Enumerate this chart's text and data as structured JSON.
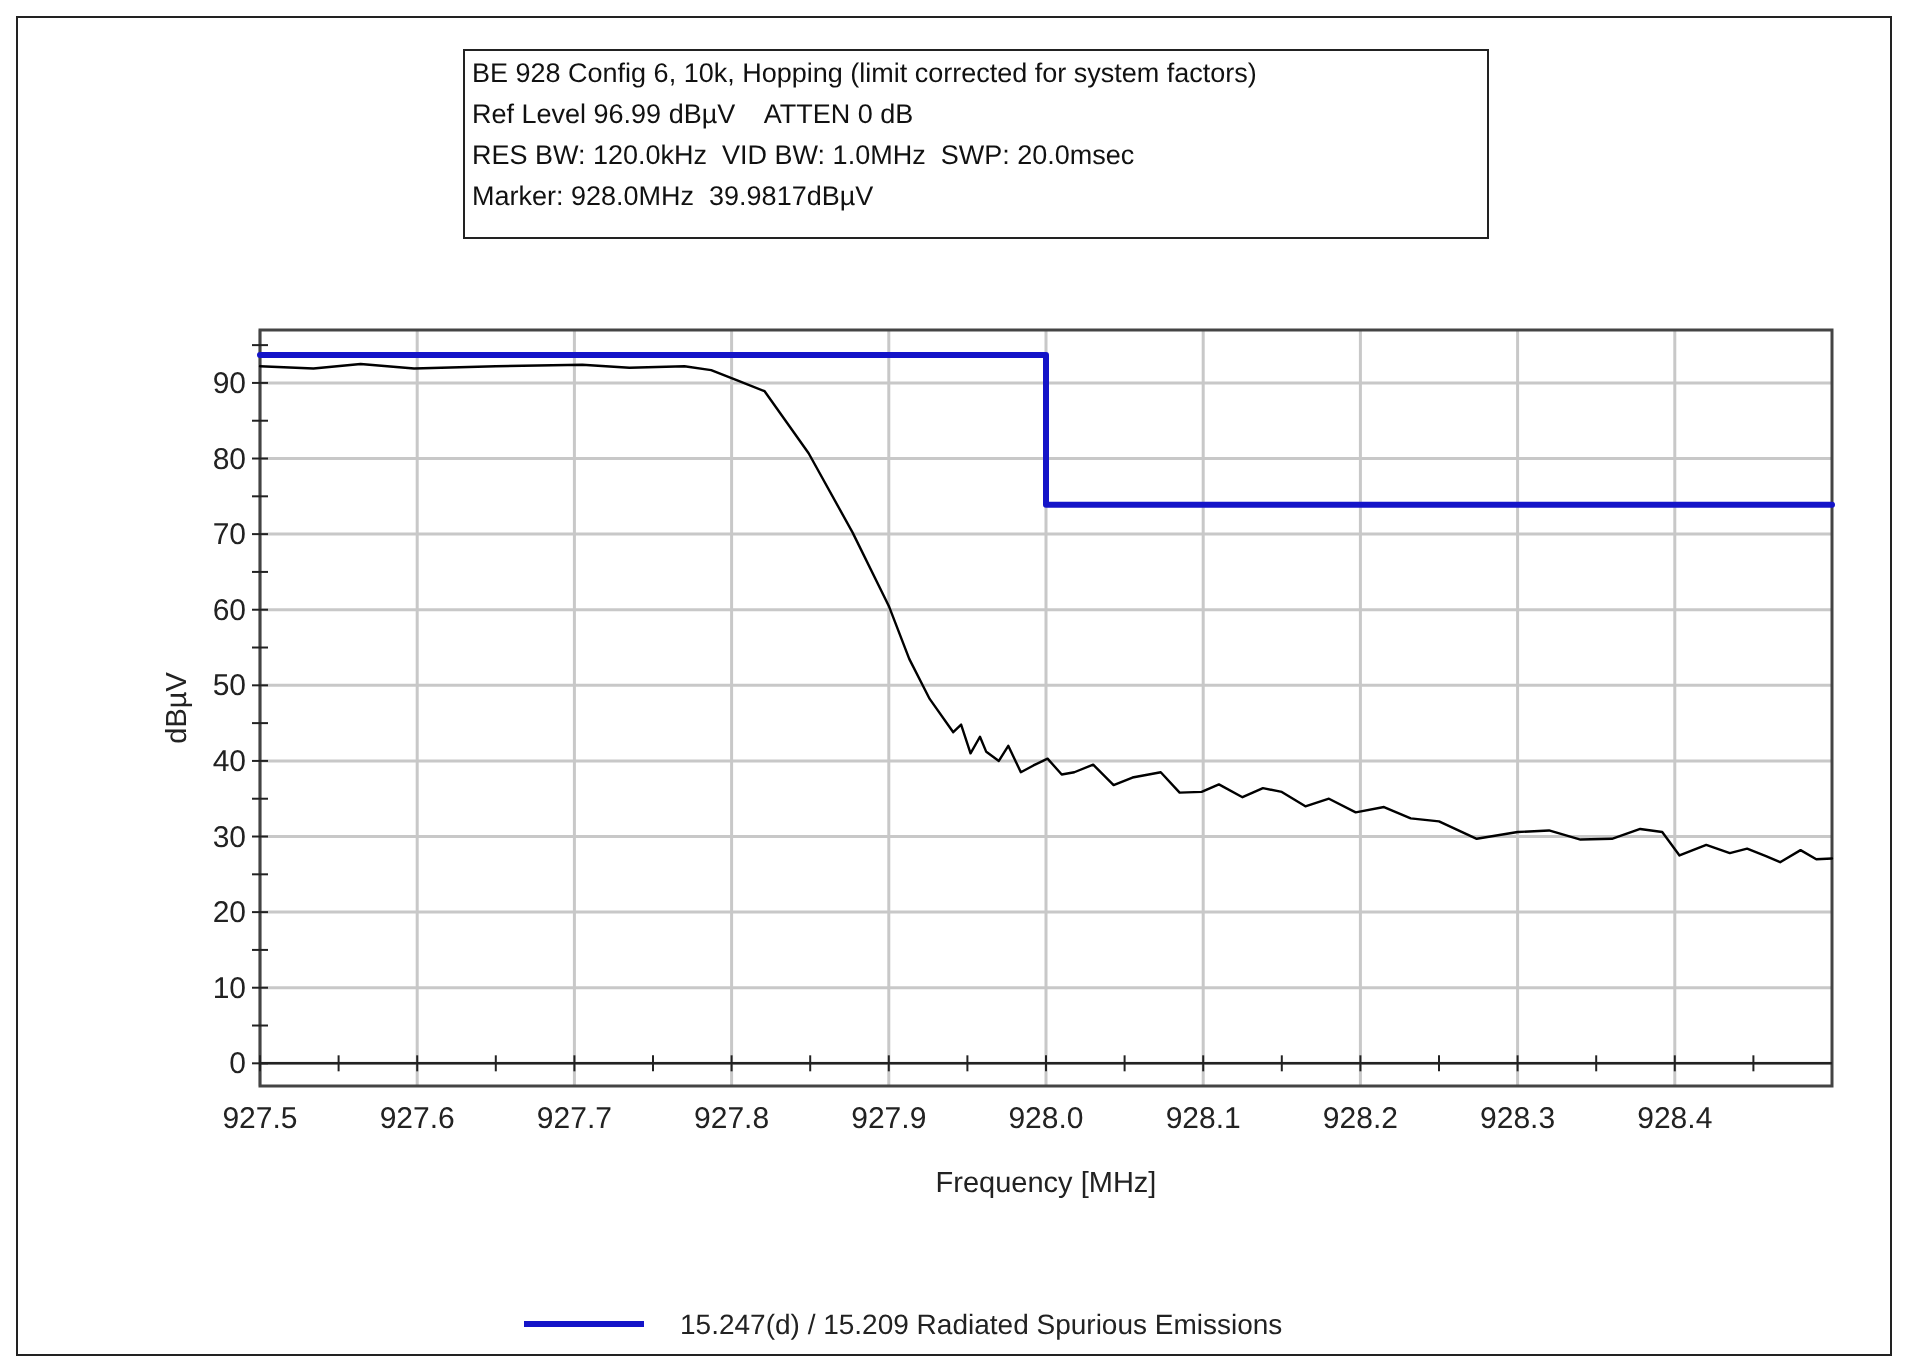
{
  "chart_data": {
    "type": "line",
    "title": "BE 928 Config 6, 10k, Hopping (limit corrected for system factors)",
    "annotations": [
      "Ref Level 96.99 dBµV    ATTEN 0 dB",
      "RES BW: 120.0kHz  VID BW: 1.0MHz  SWP: 20.0msec",
      "Marker: 928.0MHz  39.9817dBµV"
    ],
    "xlabel": "Frequency [MHz]",
    "ylabel": "dBµV",
    "xlim": [
      927.5,
      928.5
    ],
    "ylim": [
      -3,
      97
    ],
    "xticks": [
      927.5,
      {
        "value": 927.55,
        "label": null
      },
      927.6,
      {
        "value": 927.65,
        "label": null
      },
      927.7,
      {
        "value": 927.75,
        "label": null
      },
      927.8,
      {
        "value": 927.85,
        "label": null
      },
      927.9,
      {
        "value": 927.95,
        "label": null
      },
      {
        "value": 928.0,
        "label": "928.0"
      },
      {
        "value": 928.05,
        "label": null
      },
      928.1,
      {
        "value": 928.15,
        "label": null
      },
      928.2,
      {
        "value": 928.25,
        "label": null
      },
      928.3,
      {
        "value": 928.35,
        "label": null
      },
      928.4,
      {
        "value": 928.45,
        "label": null
      }
    ],
    "yticks": [
      0,
      {
        "value": 5,
        "label": null
      },
      10,
      {
        "value": 15,
        "label": null
      },
      20,
      {
        "value": 25,
        "label": null
      },
      30,
      {
        "value": 35,
        "label": null
      },
      40,
      {
        "value": 45,
        "label": null
      },
      50,
      {
        "value": 55,
        "label": null
      },
      60,
      {
        "value": 65,
        "label": null
      },
      70,
      {
        "value": 75,
        "label": null
      },
      80,
      {
        "value": 85,
        "label": null
      },
      90,
      {
        "value": 95,
        "label": null
      }
    ],
    "grid": true,
    "legend": "bottom",
    "line_style": "solid",
    "marker": "none",
    "series": [
      {
        "color": "#000000",
        "x": [
          927.5,
          927.534,
          927.564,
          927.598,
          927.65,
          927.705,
          927.735,
          927.77,
          927.787,
          927.804,
          927.821,
          927.849,
          927.877,
          927.9,
          927.913,
          927.926,
          927.941,
          927.946,
          927.952,
          927.958,
          927.962,
          927.97,
          927.976,
          927.984,
          927.992,
          928.001,
          928.01,
          928.018,
          928.03,
          928.043,
          928.055,
          928.073,
          928.085,
          928.099,
          928.11,
          928.125,
          928.138,
          928.15,
          928.165,
          928.18,
          928.197,
          928.215,
          928.232,
          928.25,
          928.274,
          928.3,
          928.32,
          928.34,
          928.36,
          928.378,
          928.392,
          928.403,
          928.42,
          928.435,
          928.446,
          928.458,
          928.467,
          928.48,
          928.49,
          928.5
        ],
        "values": [
          92.2,
          91.9,
          92.5,
          91.9,
          92.2,
          92.4,
          92.0,
          92.2,
          91.7,
          90.3,
          88.9,
          80.7,
          70.2,
          60.5,
          53.5,
          48.2,
          43.8,
          44.8,
          41.0,
          43.2,
          41.2,
          40.0,
          42.0,
          38.5,
          39.4,
          40.3,
          38.2,
          38.5,
          39.5,
          36.8,
          37.8,
          38.5,
          35.8,
          35.9,
          36.9,
          35.2,
          36.4,
          35.9,
          34.0,
          35.0,
          33.2,
          33.9,
          32.4,
          32.0,
          29.7,
          30.6,
          30.8,
          29.6,
          29.7,
          31.0,
          30.6,
          27.5,
          28.9,
          27.8,
          28.4,
          27.4,
          26.6,
          28.2,
          27.0,
          27.1
        ]
      },
      {
        "name": "15.247(d) / 15.209 Radiated Spurious Emissions",
        "color": "#1414c8",
        "x": [
          927.5,
          928.0,
          928.0,
          928.5
        ],
        "values": [
          93.7,
          93.7,
          73.9,
          73.9
        ]
      }
    ]
  }
}
